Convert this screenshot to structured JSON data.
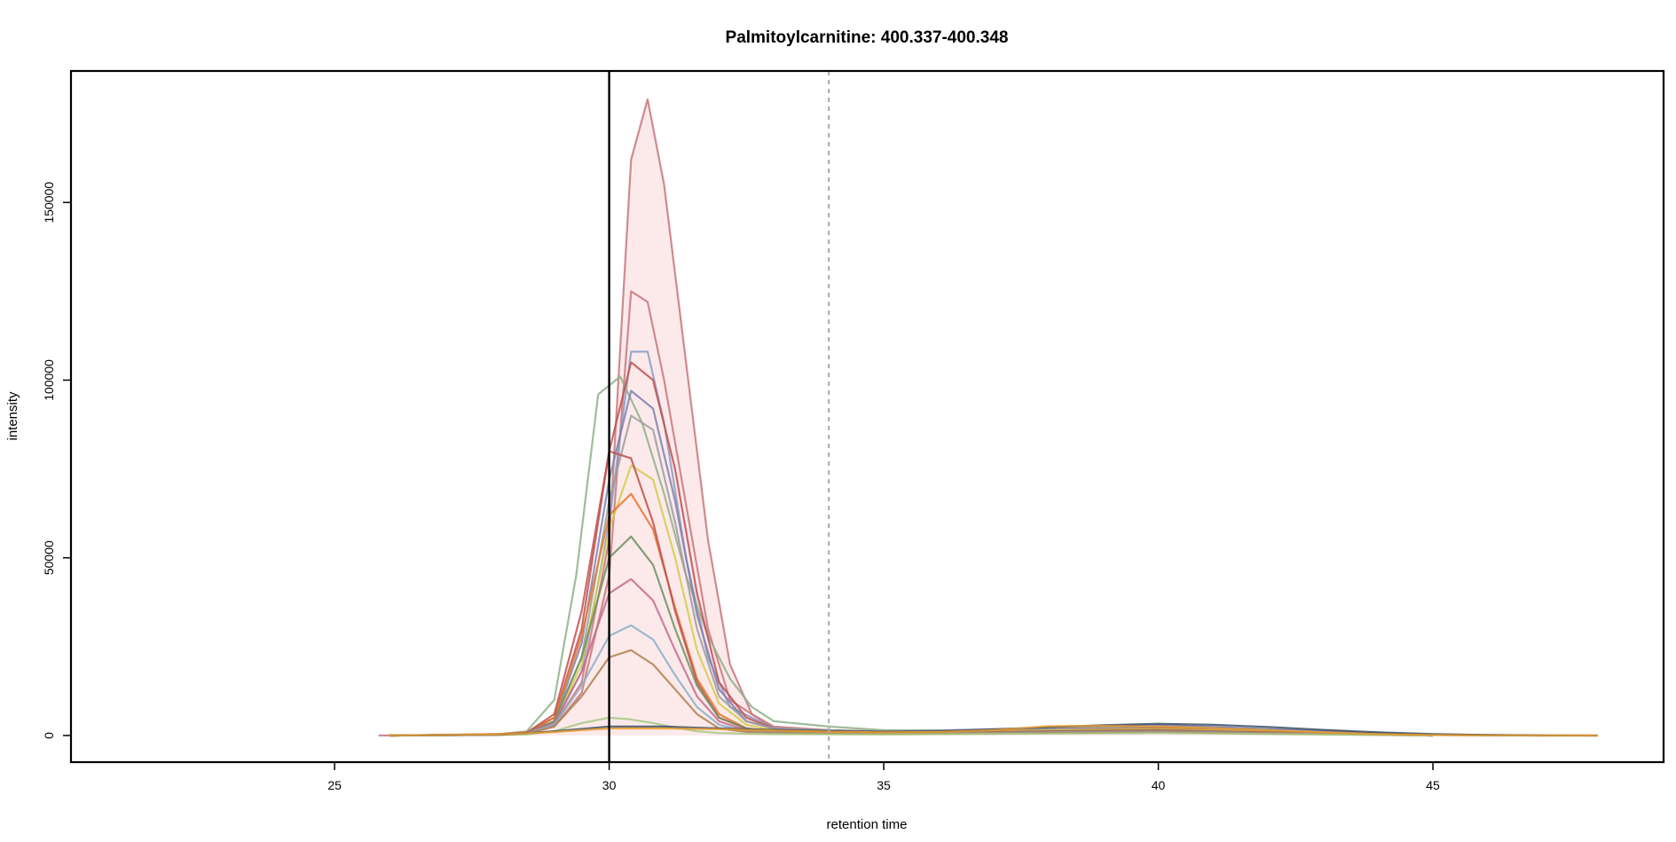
{
  "chart_data": {
    "type": "line",
    "title": "Palmitoylcarnitine: 400.337-400.348",
    "xlabel": "retention time",
    "ylabel": "intensity",
    "xlim": [
      20.2,
      49.2
    ],
    "ylim": [
      -7500,
      187000
    ],
    "x_ticks": [
      25,
      30,
      35,
      40,
      45
    ],
    "y_ticks": [
      0,
      50000,
      100000,
      150000
    ],
    "grid": false,
    "legend": "none",
    "reference_lines": [
      {
        "x": 30.0,
        "style": "solid",
        "color": "#000000"
      },
      {
        "x": 34.0,
        "style": "dashed",
        "color": "#aaaaaa"
      }
    ],
    "series": [
      {
        "color": "#c8777a",
        "fill": "#fbe3e4",
        "x": [
          25.8,
          27,
          28,
          28.5,
          29,
          29.5,
          30,
          30.4,
          30.7,
          31,
          31.4,
          31.8,
          32.2,
          32.6,
          33,
          34,
          35,
          36,
          37,
          38,
          39,
          40,
          41,
          42,
          43,
          44,
          45,
          46,
          47,
          48
        ],
        "y": [
          0,
          150,
          400,
          900,
          3000,
          15000,
          55000,
          162000,
          179000,
          155000,
          105000,
          55000,
          20000,
          6000,
          2500,
          1500,
          1200,
          1100,
          1200,
          2000,
          2500,
          2300,
          1800,
          1200,
          700,
          400,
          150,
          50,
          0,
          0
        ]
      },
      {
        "color": "#c8777a",
        "x": [
          26,
          28,
          28.5,
          29,
          29.5,
          30,
          30.4,
          30.7,
          31,
          31.4,
          31.8,
          32.2,
          33,
          35,
          40,
          45,
          47
        ],
        "y": [
          0,
          300,
          800,
          2500,
          12000,
          45000,
          125000,
          122000,
          100000,
          65000,
          30000,
          10000,
          2000,
          1000,
          2000,
          200,
          0
        ]
      },
      {
        "color": "#8a9cc4",
        "x": [
          26,
          28,
          28.5,
          29,
          29.5,
          30,
          30.4,
          30.7,
          31,
          31.4,
          31.8,
          32.2,
          33,
          35,
          40,
          45,
          47
        ],
        "y": [
          0,
          300,
          700,
          3000,
          18000,
          60000,
          108000,
          108000,
          88000,
          50000,
          22000,
          8000,
          2000,
          1000,
          2800,
          300,
          0
        ]
      },
      {
        "color": "#8fb08a",
        "x": [
          26,
          28,
          28.5,
          29,
          29.4,
          29.8,
          30.2,
          30.6,
          31,
          31.4,
          31.8,
          32.2,
          32.6,
          33,
          34,
          35,
          37,
          40,
          43,
          46
        ],
        "y": [
          0,
          400,
          1200,
          10000,
          45000,
          96000,
          101000,
          88000,
          68000,
          45000,
          28000,
          16000,
          8000,
          4000,
          2500,
          1500,
          1500,
          2600,
          1000,
          0
        ]
      },
      {
        "color": "#c0504d",
        "x": [
          26,
          28,
          28.5,
          29,
          29.5,
          30,
          30.4,
          30.8,
          31.2,
          31.6,
          32,
          32.5,
          33,
          35,
          40,
          45
        ],
        "y": [
          0,
          300,
          800,
          5000,
          30000,
          80000,
          105000,
          100000,
          75000,
          40000,
          15000,
          5000,
          2000,
          1000,
          2000,
          0
        ]
      },
      {
        "color": "#7f7fb2",
        "x": [
          26,
          28,
          28.5,
          29,
          29.5,
          30,
          30.4,
          30.8,
          31.2,
          31.6,
          32,
          32.5,
          33,
          35,
          40,
          45
        ],
        "y": [
          0,
          300,
          800,
          4000,
          26000,
          72000,
          97000,
          92000,
          66000,
          34000,
          13000,
          4000,
          2000,
          1000,
          3000,
          0
        ]
      },
      {
        "color": "#9c9c9c",
        "x": [
          26,
          28,
          28.5,
          29,
          29.5,
          30,
          30.4,
          30.8,
          31.2,
          31.6,
          32,
          32.5,
          33,
          35,
          40,
          45
        ],
        "y": [
          0,
          300,
          800,
          4000,
          22000,
          66000,
          90000,
          86000,
          60000,
          30000,
          11000,
          4000,
          2000,
          1000,
          2500,
          0
        ]
      },
      {
        "color": "#d4cb4a",
        "x": [
          26,
          28,
          28.5,
          29,
          29.5,
          30,
          30.4,
          30.8,
          31.2,
          31.6,
          32,
          32.5,
          33,
          35,
          40,
          45
        ],
        "y": [
          0,
          300,
          700,
          3500,
          20000,
          58000,
          76000,
          72000,
          50000,
          24000,
          9000,
          3000,
          1500,
          800,
          1800,
          0
        ]
      },
      {
        "color": "#e8762c",
        "x": [
          26,
          28,
          28.5,
          29,
          29.5,
          30,
          30.4,
          30.8,
          31.2,
          31.6,
          32,
          32.5,
          33,
          35,
          40,
          45
        ],
        "y": [
          0,
          400,
          900,
          5000,
          28000,
          62000,
          68000,
          58000,
          36000,
          16000,
          6000,
          2000,
          1200,
          700,
          1500,
          0
        ]
      },
      {
        "color": "#c0504d",
        "x": [
          26,
          28,
          28.5,
          29,
          29.5,
          30,
          30.4,
          30.8,
          31.2,
          31.6,
          32,
          32.5,
          33,
          35,
          40,
          45
        ],
        "y": [
          0,
          300,
          800,
          6000,
          35000,
          80000,
          78000,
          60000,
          35000,
          15000,
          5000,
          2000,
          1000,
          700,
          1500,
          0
        ]
      },
      {
        "color": "#6e8f5e",
        "x": [
          26,
          28,
          28.5,
          29,
          29.5,
          30,
          30.4,
          30.8,
          31.2,
          31.6,
          32,
          32.5,
          33,
          35,
          40,
          45
        ],
        "y": [
          0,
          300,
          700,
          4000,
          22000,
          50000,
          56000,
          48000,
          30000,
          14000,
          5000,
          2000,
          1000,
          600,
          1400,
          0
        ]
      },
      {
        "color": "#c66b8e",
        "x": [
          26,
          28,
          28.5,
          29,
          29.5,
          30,
          30.4,
          30.8,
          31.2,
          31.6,
          32,
          32.5,
          33,
          35,
          40,
          45
        ],
        "y": [
          0,
          300,
          700,
          3500,
          18000,
          40000,
          44000,
          38000,
          24000,
          11000,
          4000,
          1500,
          900,
          500,
          1200,
          0
        ]
      },
      {
        "color": "#8ab0c9",
        "x": [
          26,
          28,
          28.5,
          29,
          29.5,
          30,
          30.4,
          30.8,
          31.2,
          31.6,
          32,
          32.5,
          33,
          35,
          40,
          45
        ],
        "y": [
          0,
          200,
          600,
          3000,
          14000,
          28000,
          31000,
          27000,
          17000,
          8000,
          3000,
          1200,
          800,
          500,
          1000,
          0
        ]
      },
      {
        "color": "#b08050",
        "x": [
          26,
          28,
          28.5,
          29,
          29.5,
          30,
          30.4,
          30.8,
          31.2,
          31.6,
          32,
          32.5,
          33,
          35,
          40,
          45
        ],
        "y": [
          0,
          200,
          500,
          2500,
          11000,
          22000,
          24000,
          20000,
          13000,
          6000,
          2000,
          1000,
          700,
          400,
          900,
          0
        ]
      },
      {
        "color": "#a5c882",
        "x": [
          26,
          28,
          28.5,
          29,
          29.5,
          30,
          30.4,
          30.8,
          31.2,
          31.6,
          32,
          32.5,
          33,
          35,
          40,
          45
        ],
        "y": [
          0,
          150,
          300,
          1200,
          3500,
          5000,
          4500,
          3500,
          2200,
          1200,
          700,
          500,
          400,
          300,
          700,
          0
        ]
      },
      {
        "color": "#3c5068",
        "x": [
          26,
          28,
          29,
          30,
          31,
          32,
          33,
          34,
          35,
          36,
          37,
          38,
          39,
          40,
          41,
          42,
          43,
          44,
          45,
          46,
          47,
          48
        ],
        "y": [
          0,
          200,
          1200,
          2500,
          2500,
          2000,
          1600,
          1300,
          1100,
          1200,
          1700,
          2300,
          2900,
          3300,
          3000,
          2400,
          1600,
          900,
          400,
          150,
          50,
          0
        ]
      },
      {
        "color": "#e89a2c",
        "x": [
          26,
          28,
          29,
          30,
          31,
          32,
          33,
          34,
          35,
          36,
          37,
          38,
          39,
          40,
          41,
          42,
          43,
          44,
          45,
          46,
          47,
          48
        ],
        "y": [
          0,
          300,
          1000,
          2000,
          2000,
          1800,
          1400,
          1100,
          900,
          1000,
          1500,
          2600,
          2700,
          2500,
          2100,
          1500,
          900,
          400,
          150,
          50,
          0,
          0
        ]
      }
    ]
  }
}
